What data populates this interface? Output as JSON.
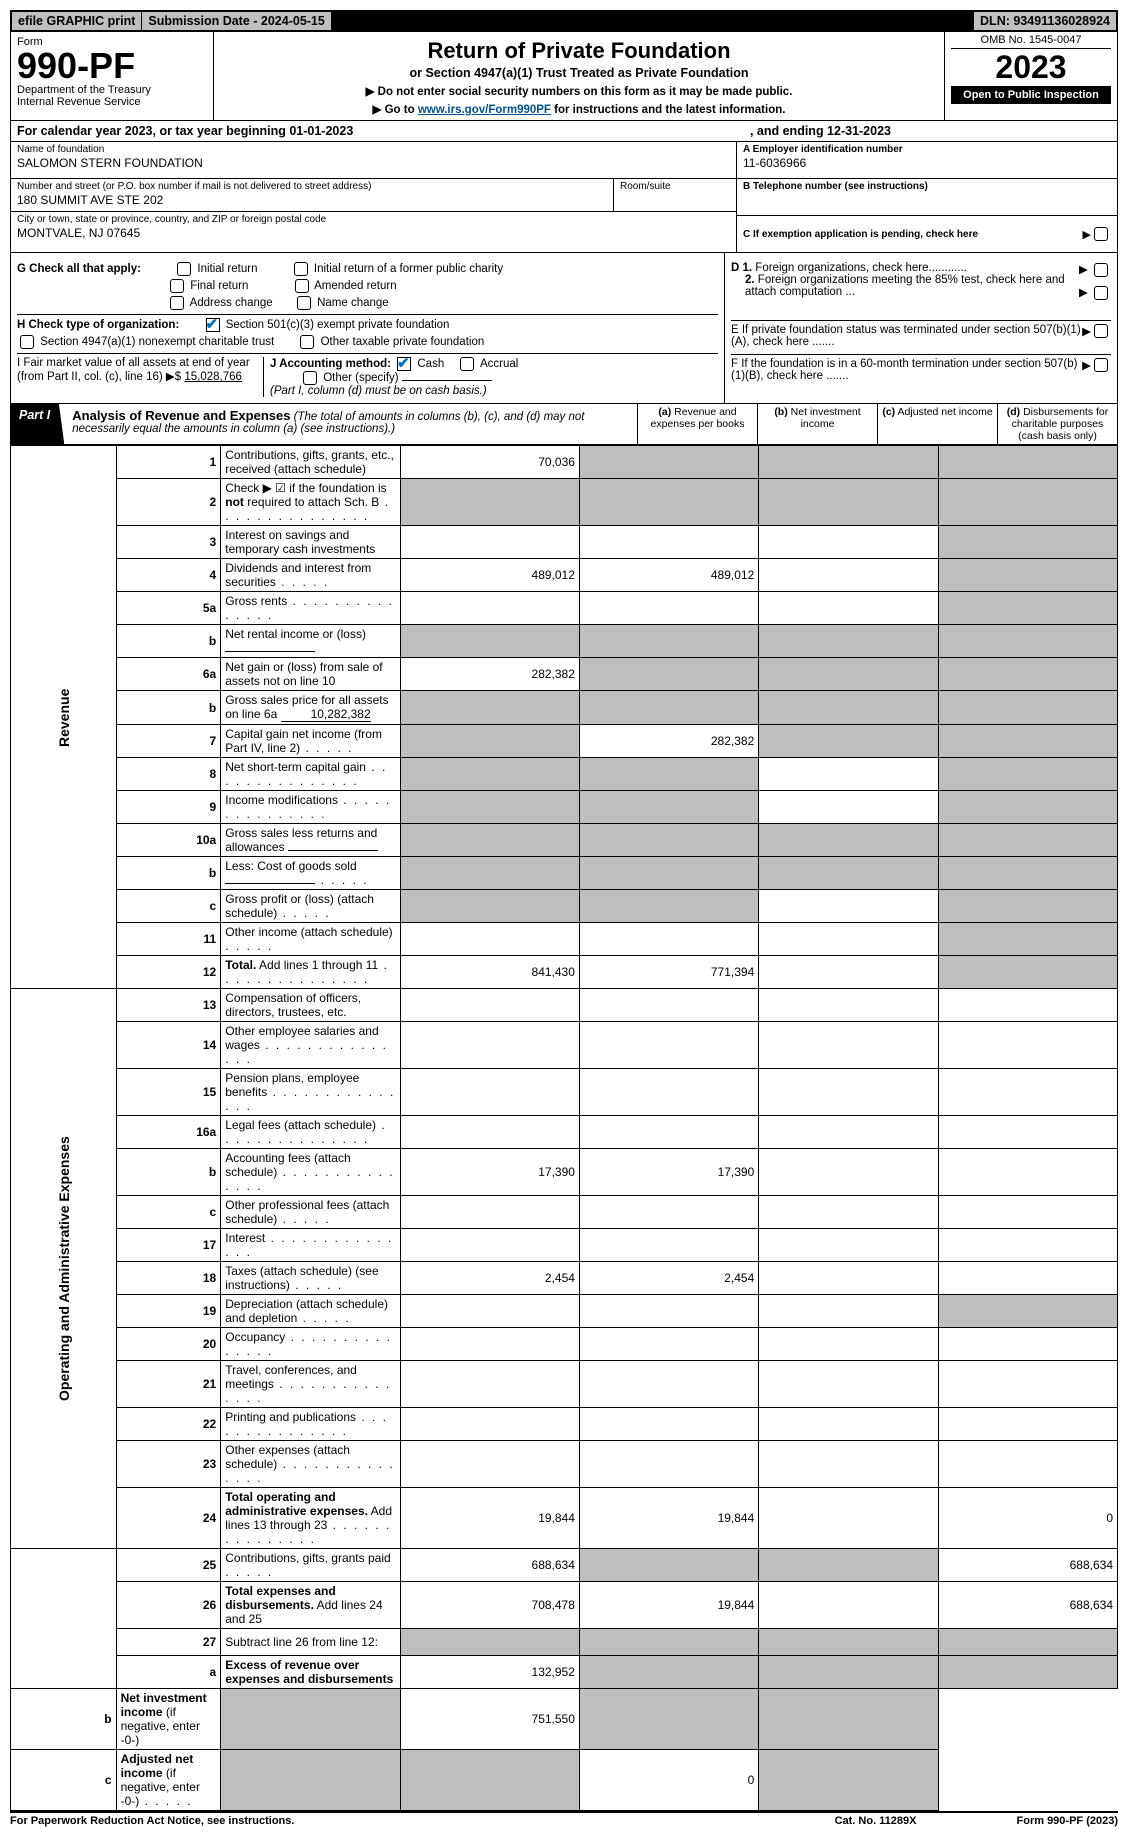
{
  "top_bar": {
    "efile": "efile GRAPHIC print",
    "submission_label": "Submission Date - 2024-05-15",
    "dln": "DLN: 93491136028924"
  },
  "header": {
    "form_word": "Form",
    "form_number": "990-PF",
    "dept": "Department of the Treasury",
    "irs": "Internal Revenue Service",
    "title": "Return of Private Foundation",
    "subtitle": "or Section 4947(a)(1) Trust Treated as Private Foundation",
    "inst1": "▶ Do not enter social security numbers on this form as it may be made public.",
    "inst2_pre": "▶ Go to ",
    "inst2_link": "www.irs.gov/Form990PF",
    "inst2_post": " for instructions and the latest information.",
    "omb": "OMB No. 1545-0047",
    "year": "2023",
    "open": "Open to Public Inspection"
  },
  "cal": {
    "text_a": "For calendar year 2023, or tax year beginning 01-01-2023",
    "text_b": ", and ending 12-31-2023"
  },
  "entity": {
    "name_lbl": "Name of foundation",
    "name": "SALOMON STERN FOUNDATION",
    "addr_lbl": "Number and street (or P.O. box number if mail is not delivered to street address)",
    "addr": "180 SUMMIT AVE STE 202",
    "suite_lbl": "Room/suite",
    "city_lbl": "City or town, state or province, country, and ZIP or foreign postal code",
    "city": "MONTVALE, NJ  07645",
    "ein_lbl": "A Employer identification number",
    "ein": "11-6036966",
    "tel_lbl": "B Telephone number (see instructions)",
    "c_lbl": "C If exemption application is pending, check here"
  },
  "checks": {
    "g": "G Check all that apply:",
    "g_opts": [
      "Initial return",
      "Initial return of a former public charity",
      "Final return",
      "Amended return",
      "Address change",
      "Name change"
    ],
    "h": "H Check type of organization:",
    "h1": "Section 501(c)(3) exempt private foundation",
    "h2": "Section 4947(a)(1) nonexempt charitable trust",
    "h3": "Other taxable private foundation",
    "i_a": "I Fair market value of all assets at end of year (from Part II, col. (c), line 16)",
    "i_b": "▶$",
    "i_val": "15,028,766",
    "j": "J Accounting method:",
    "j1": "Cash",
    "j2": "Accrual",
    "j3": "Other (specify)",
    "j_note": "(Part I, column (d) must be on cash basis.)",
    "d1": "D 1. Foreign organizations, check here............",
    "d2": "2. Foreign organizations meeting the 85% test, check here and attach computation ...",
    "e": "E  If private foundation status was terminated under section 507(b)(1)(A), check here .......",
    "f": "F  If the foundation is in a 60-month termination under section 507(b)(1)(B), check here .......",
    "arrow": "▶"
  },
  "part1": {
    "label": "Part I",
    "title": "Analysis of Revenue and Expenses",
    "note": " (The total of amounts in columns (b), (c), and (d) may not necessarily equal the amounts in column (a) (see instructions).)",
    "col_a": "(a) Revenue and expenses per books",
    "col_b": "(b) Net investment income",
    "col_c": "(c) Adjusted net income",
    "col_d": "(d) Disbursements for charitable purposes (cash basis only)"
  },
  "sections": {
    "revenue": "Revenue",
    "expenses": "Operating and Administrative Expenses"
  },
  "rows": [
    {
      "n": "1",
      "d": "Contributions, gifts, grants, etc., received (attach schedule)",
      "a": "70,036",
      "b": "g",
      "c": "g",
      "dd": "g"
    },
    {
      "n": "2",
      "d": "Check ▶ ☑ if the foundation is <b>not</b> required to attach Sch. B",
      "a": "g",
      "b": "g",
      "c": "g",
      "dd": "g",
      "dots": true
    },
    {
      "n": "3",
      "d": "Interest on savings and temporary cash investments",
      "a": "",
      "b": "",
      "c": "",
      "dd": "g"
    },
    {
      "n": "4",
      "d": "Dividends and interest from securities",
      "a": "489,012",
      "b": "489,012",
      "c": "",
      "dd": "g",
      "dots": "s"
    },
    {
      "n": "5a",
      "d": "Gross rents",
      "a": "",
      "b": "",
      "c": "",
      "dd": "g",
      "dots": true
    },
    {
      "n": "b",
      "d": "Net rental income or (loss)",
      "a": "g",
      "b": "g",
      "c": "g",
      "dd": "g",
      "sub": true
    },
    {
      "n": "6a",
      "d": "Net gain or (loss) from sale of assets not on line 10",
      "a": "282,382",
      "b": "g",
      "c": "g",
      "dd": "g"
    },
    {
      "n": "b",
      "d": "Gross sales price for all assets on line 6a",
      "a": "g",
      "b": "g",
      "c": "g",
      "dd": "g",
      "subval": "10,282,382"
    },
    {
      "n": "7",
      "d": "Capital gain net income (from Part IV, line 2)",
      "a": "g",
      "b": "282,382",
      "c": "g",
      "dd": "g",
      "dots": "s"
    },
    {
      "n": "8",
      "d": "Net short-term capital gain",
      "a": "g",
      "b": "g",
      "c": "",
      "dd": "g",
      "dots": true
    },
    {
      "n": "9",
      "d": "Income modifications",
      "a": "g",
      "b": "g",
      "c": "",
      "dd": "g",
      "dots": true
    },
    {
      "n": "10a",
      "d": "Gross sales less returns and allowances",
      "a": "g",
      "b": "g",
      "c": "g",
      "dd": "g",
      "sub": true
    },
    {
      "n": "b",
      "d": "Less: Cost of goods sold",
      "a": "g",
      "b": "g",
      "c": "g",
      "dd": "g",
      "sub": true,
      "dots": "s"
    },
    {
      "n": "c",
      "d": "Gross profit or (loss) (attach schedule)",
      "a": "g",
      "b": "g",
      "c": "",
      "dd": "g",
      "dots": "s"
    },
    {
      "n": "11",
      "d": "Other income (attach schedule)",
      "a": "",
      "b": "",
      "c": "",
      "dd": "g",
      "dots": "s"
    },
    {
      "n": "12",
      "d": "<b>Total.</b> Add lines 1 through 11",
      "a": "841,430",
      "b": "771,394",
      "c": "",
      "dd": "g",
      "dots": true
    },
    {
      "n": "13",
      "d": "Compensation of officers, directors, trustees, etc.",
      "a": "",
      "b": "",
      "c": "",
      "dd": ""
    },
    {
      "n": "14",
      "d": "Other employee salaries and wages",
      "a": "",
      "b": "",
      "c": "",
      "dd": "",
      "dots": true
    },
    {
      "n": "15",
      "d": "Pension plans, employee benefits",
      "a": "",
      "b": "",
      "c": "",
      "dd": "",
      "dots": true
    },
    {
      "n": "16a",
      "d": "Legal fees (attach schedule)",
      "a": "",
      "b": "",
      "c": "",
      "dd": "",
      "dots": true
    },
    {
      "n": "b",
      "d": "Accounting fees (attach schedule)",
      "a": "17,390",
      "b": "17,390",
      "c": "",
      "dd": "",
      "dots": true
    },
    {
      "n": "c",
      "d": "Other professional fees (attach schedule)",
      "a": "",
      "b": "",
      "c": "",
      "dd": "",
      "dots": "s"
    },
    {
      "n": "17",
      "d": "Interest",
      "a": "",
      "b": "",
      "c": "",
      "dd": "",
      "dots": true
    },
    {
      "n": "18",
      "d": "Taxes (attach schedule) (see instructions)",
      "a": "2,454",
      "b": "2,454",
      "c": "",
      "dd": "",
      "dots": "s"
    },
    {
      "n": "19",
      "d": "Depreciation (attach schedule) and depletion",
      "a": "",
      "b": "",
      "c": "",
      "dd": "g",
      "dots": "s"
    },
    {
      "n": "20",
      "d": "Occupancy",
      "a": "",
      "b": "",
      "c": "",
      "dd": "",
      "dots": true
    },
    {
      "n": "21",
      "d": "Travel, conferences, and meetings",
      "a": "",
      "b": "",
      "c": "",
      "dd": "",
      "dots": true
    },
    {
      "n": "22",
      "d": "Printing and publications",
      "a": "",
      "b": "",
      "c": "",
      "dd": "",
      "dots": true
    },
    {
      "n": "23",
      "d": "Other expenses (attach schedule)",
      "a": "",
      "b": "",
      "c": "",
      "dd": "",
      "dots": true
    },
    {
      "n": "24",
      "d": "<b>Total operating and administrative expenses.</b> Add lines 13 through 23",
      "a": "19,844",
      "b": "19,844",
      "c": "",
      "dd": "0",
      "dots": true
    },
    {
      "n": "25",
      "d": "Contributions, gifts, grants paid",
      "a": "688,634",
      "b": "g",
      "c": "g",
      "dd": "688,634",
      "dots": "s"
    },
    {
      "n": "26",
      "d": "<b>Total expenses and disbursements.</b> Add lines 24 and 25",
      "a": "708,478",
      "b": "19,844",
      "c": "",
      "dd": "688,634"
    },
    {
      "n": "27",
      "d": "Subtract line 26 from line 12:",
      "a": "g",
      "b": "g",
      "c": "g",
      "dd": "g"
    },
    {
      "n": "a",
      "d": "<b>Excess of revenue over expenses and disbursements</b>",
      "a": "132,952",
      "b": "g",
      "c": "g",
      "dd": "g"
    },
    {
      "n": "b",
      "d": "<b>Net investment income</b> (if negative, enter -0-)",
      "a": "g",
      "b": "751,550",
      "c": "g",
      "dd": "g"
    },
    {
      "n": "c",
      "d": "<b>Adjusted net income</b> (if negative, enter -0-)",
      "a": "g",
      "b": "g",
      "c": "0",
      "dd": "g",
      "dots": "s"
    }
  ],
  "footer": {
    "left": "For Paperwork Reduction Act Notice, see instructions.",
    "mid": "Cat. No. 11289X",
    "right": "Form 990-PF (2023)"
  }
}
